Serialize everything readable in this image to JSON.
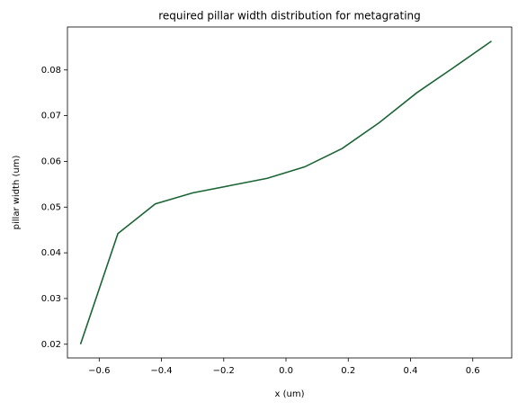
{
  "chart_data": {
    "type": "line",
    "title": "required pillar width distribution for metagrating",
    "x_label": "x (um)",
    "y_label": "pillar width (um)",
    "x": [
      -0.66,
      -0.54,
      -0.42,
      -0.3,
      -0.18,
      -0.06,
      0.06,
      0.18,
      0.3,
      0.42,
      0.54,
      0.66
    ],
    "series": [
      {
        "color": "#1b6535",
        "values": [
          0.02,
          0.0442,
          0.0507,
          0.0531,
          0.0547,
          0.0563,
          0.0588,
          0.0628,
          0.0685,
          0.075,
          0.0806,
          0.0863
        ]
      }
    ],
    "xlim": [
      -0.702,
      0.725
    ],
    "ylim": [
      0.017,
      0.0894
    ],
    "xticks": [
      {
        "value": -0.6,
        "label": "−0.6"
      },
      {
        "value": -0.4,
        "label": "−0.4"
      },
      {
        "value": -0.2,
        "label": "−0.2"
      },
      {
        "value": 0.0,
        "label": "0.0"
      },
      0.2,
      0.4,
      0.6
    ],
    "yticks": [
      0.02,
      0.03,
      0.04,
      0.05,
      0.06,
      0.07,
      0.08
    ],
    "grid": false
  }
}
